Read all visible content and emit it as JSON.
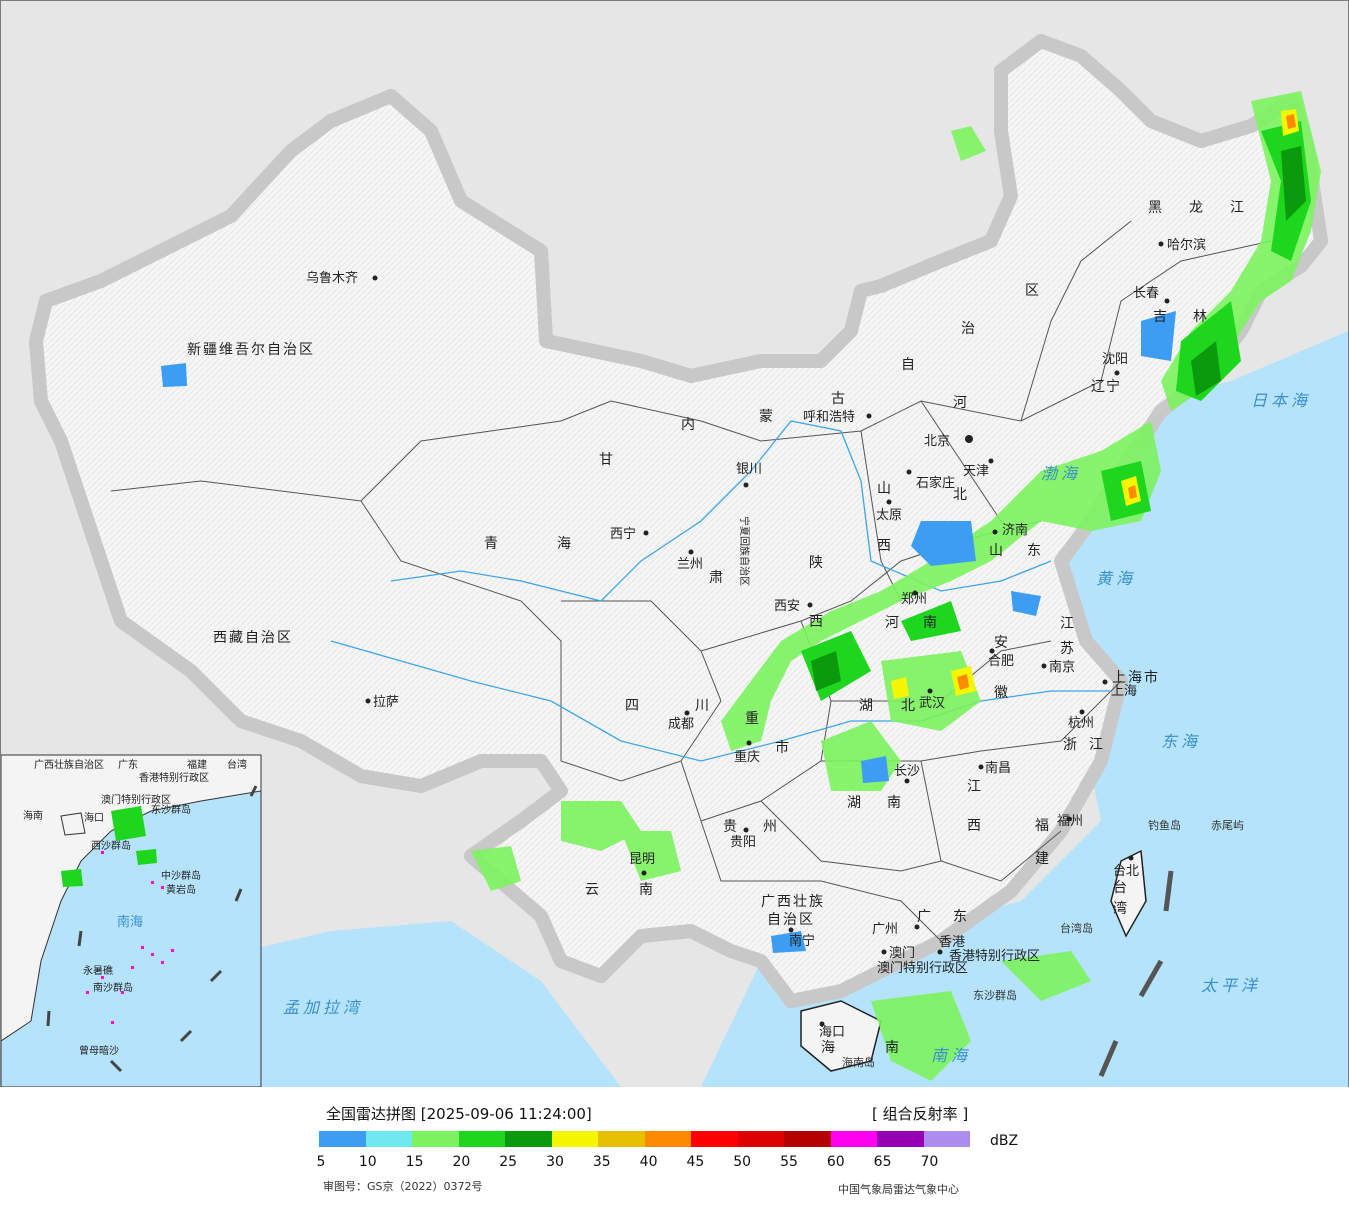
{
  "legend": {
    "title": "全国雷达拼图 [2025-09-06 11:24:00]",
    "product": "[ 组合反射率 ]",
    "unit": "dBZ",
    "ticks": [
      "5",
      "10",
      "15",
      "20",
      "25",
      "30",
      "35",
      "40",
      "45",
      "50",
      "55",
      "60",
      "65",
      "70"
    ],
    "colors": [
      "#3d9df2",
      "#6ee9f0",
      "#7cf35e",
      "#1fd61f",
      "#0b9a0b",
      "#f6f600",
      "#e6c000",
      "#ff8a00",
      "#ff0000",
      "#dd0000",
      "#b40000",
      "#ff00f0",
      "#9600b4",
      "#ad8cf0"
    ],
    "approval": "审图号：GS京（2022）0372号",
    "source": "中国气象局雷达气象中心"
  },
  "map": {
    "provinces": [
      "新疆维吾尔自治区",
      "西藏自治区",
      "青海",
      "甘",
      "肃",
      "内",
      "蒙",
      "古",
      "自",
      "治",
      "区",
      "黑",
      "龙",
      "江",
      "吉",
      "林",
      "辽",
      "宁",
      "河",
      "北",
      "山",
      "西",
      "陕",
      "西",
      "山",
      "东",
      "河",
      "南",
      "江",
      "苏",
      "安",
      "徽",
      "湖",
      "北",
      "湖",
      "南",
      "四",
      "川",
      "贵",
      "州",
      "云",
      "南",
      "广西壮族",
      "自治区",
      "广",
      "东",
      "江",
      "西",
      "浙",
      "江",
      "福",
      "建",
      "台",
      "湾",
      "海",
      "南",
      "宁夏回族自治区",
      "重",
      "庆",
      "市",
      "上海市",
      "香港特别行政区",
      "澳门特别行政区"
    ],
    "cities": [
      "乌鲁木齐",
      "拉萨",
      "西宁",
      "兰州",
      "银川",
      "呼和浩特",
      "西安",
      "成都",
      "重庆",
      "贵阳",
      "昆明",
      "南宁",
      "长沙",
      "武汉",
      "郑州",
      "太原",
      "石家庄",
      "北京",
      "天津",
      "济南",
      "南京",
      "合肥",
      "上海",
      "杭州",
      "南昌",
      "福州",
      "台北",
      "广州",
      "澳门",
      "香港",
      "海口",
      "哈尔滨",
      "长春",
      "沈阳"
    ],
    "seas": [
      "日本海",
      "渤海",
      "黄海",
      "东海",
      "太平洋",
      "南海",
      "孟加拉湾"
    ],
    "islands": [
      "钓鱼岛",
      "赤尾屿",
      "台湾岛",
      "海南岛",
      "东沙群岛"
    ],
    "inset": {
      "labels": [
        "广西壮族自治区",
        "广东",
        "福建",
        "台湾",
        "香港特别行政区",
        "澳门特别行政区",
        "海南",
        "海口",
        "东沙群岛",
        "中沙群岛",
        "黄岩岛",
        "南海",
        "西沙群岛",
        "永暑礁",
        "南沙群岛",
        "曾母暗沙"
      ]
    }
  }
}
